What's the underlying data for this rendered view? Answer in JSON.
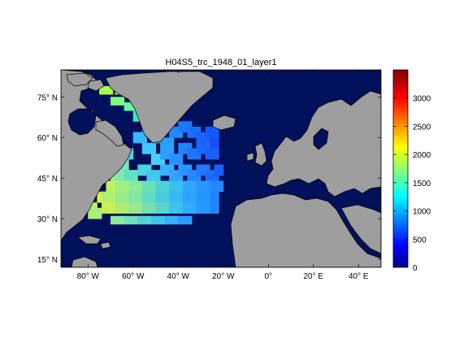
{
  "figure": {
    "title": "H04S5_trc_1948_01_layer1"
  },
  "map": {
    "lon_range": [
      -92,
      50
    ],
    "lat_range": [
      12,
      85
    ],
    "ocean_color": "#00105a",
    "land_color": "#9e9e9e",
    "coast_color": "#000000",
    "lon_ticks": [
      {
        "value": -80,
        "label": "80° W"
      },
      {
        "value": -60,
        "label": "60° W"
      },
      {
        "value": -40,
        "label": "40° W"
      },
      {
        "value": -20,
        "label": "20° W"
      },
      {
        "value": 0,
        "label": "0°"
      },
      {
        "value": 20,
        "label": "20° E"
      },
      {
        "value": 40,
        "label": "40° E"
      }
    ],
    "lat_ticks": [
      {
        "value": 75,
        "label": "75° N"
      },
      {
        "value": 60,
        "label": "60° N"
      },
      {
        "value": 45,
        "label": "45° N"
      },
      {
        "value": 30,
        "label": "30° N"
      },
      {
        "value": 15,
        "label": "15° N"
      }
    ]
  },
  "colorbar": {
    "min": 0,
    "max": 3500,
    "colormap": "jet",
    "ticks": [
      {
        "value": 0,
        "label": "0"
      },
      {
        "value": 500,
        "label": "500"
      },
      {
        "value": 1000,
        "label": "1000"
      },
      {
        "value": 1500,
        "label": "1500"
      },
      {
        "value": 2000,
        "label": "2000"
      },
      {
        "value": 2500,
        "label": "2500"
      },
      {
        "value": 3000,
        "label": "3000"
      }
    ]
  }
}
